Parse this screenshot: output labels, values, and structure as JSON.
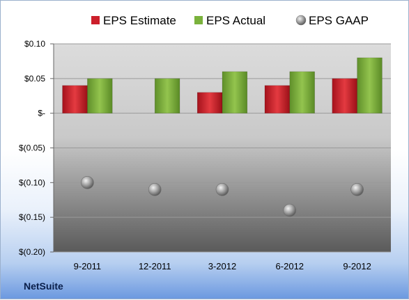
{
  "brand": "NetSuite",
  "chart_data": {
    "type": "bar",
    "categories": [
      "9-2011",
      "12-2011",
      "3-2012",
      "6-2012",
      "9-2012"
    ],
    "series": [
      {
        "name": "EPS Estimate",
        "kind": "bar",
        "color": "#cc1f2b",
        "values": [
          0.04,
          null,
          0.03,
          0.04,
          0.05
        ]
      },
      {
        "name": "EPS Actual",
        "kind": "bar",
        "color": "#7ab23c",
        "values": [
          0.05,
          0.05,
          0.06,
          0.06,
          0.08
        ]
      },
      {
        "name": "EPS GAAP",
        "kind": "marker",
        "color": "#9a9a9a",
        "values": [
          -0.1,
          -0.11,
          -0.11,
          -0.14,
          -0.11
        ]
      }
    ],
    "ylim": [
      -0.2,
      0.1
    ],
    "yticks": [
      0.1,
      0.05,
      0.0,
      -0.05,
      -0.1,
      -0.15,
      -0.2
    ],
    "ytick_labels": [
      "$0.10",
      "$0.05",
      "$-",
      "$(0.05)",
      "$(0.10)",
      "$(0.15)",
      "$(0.20)"
    ],
    "grid": true,
    "legend_position": "top"
  }
}
